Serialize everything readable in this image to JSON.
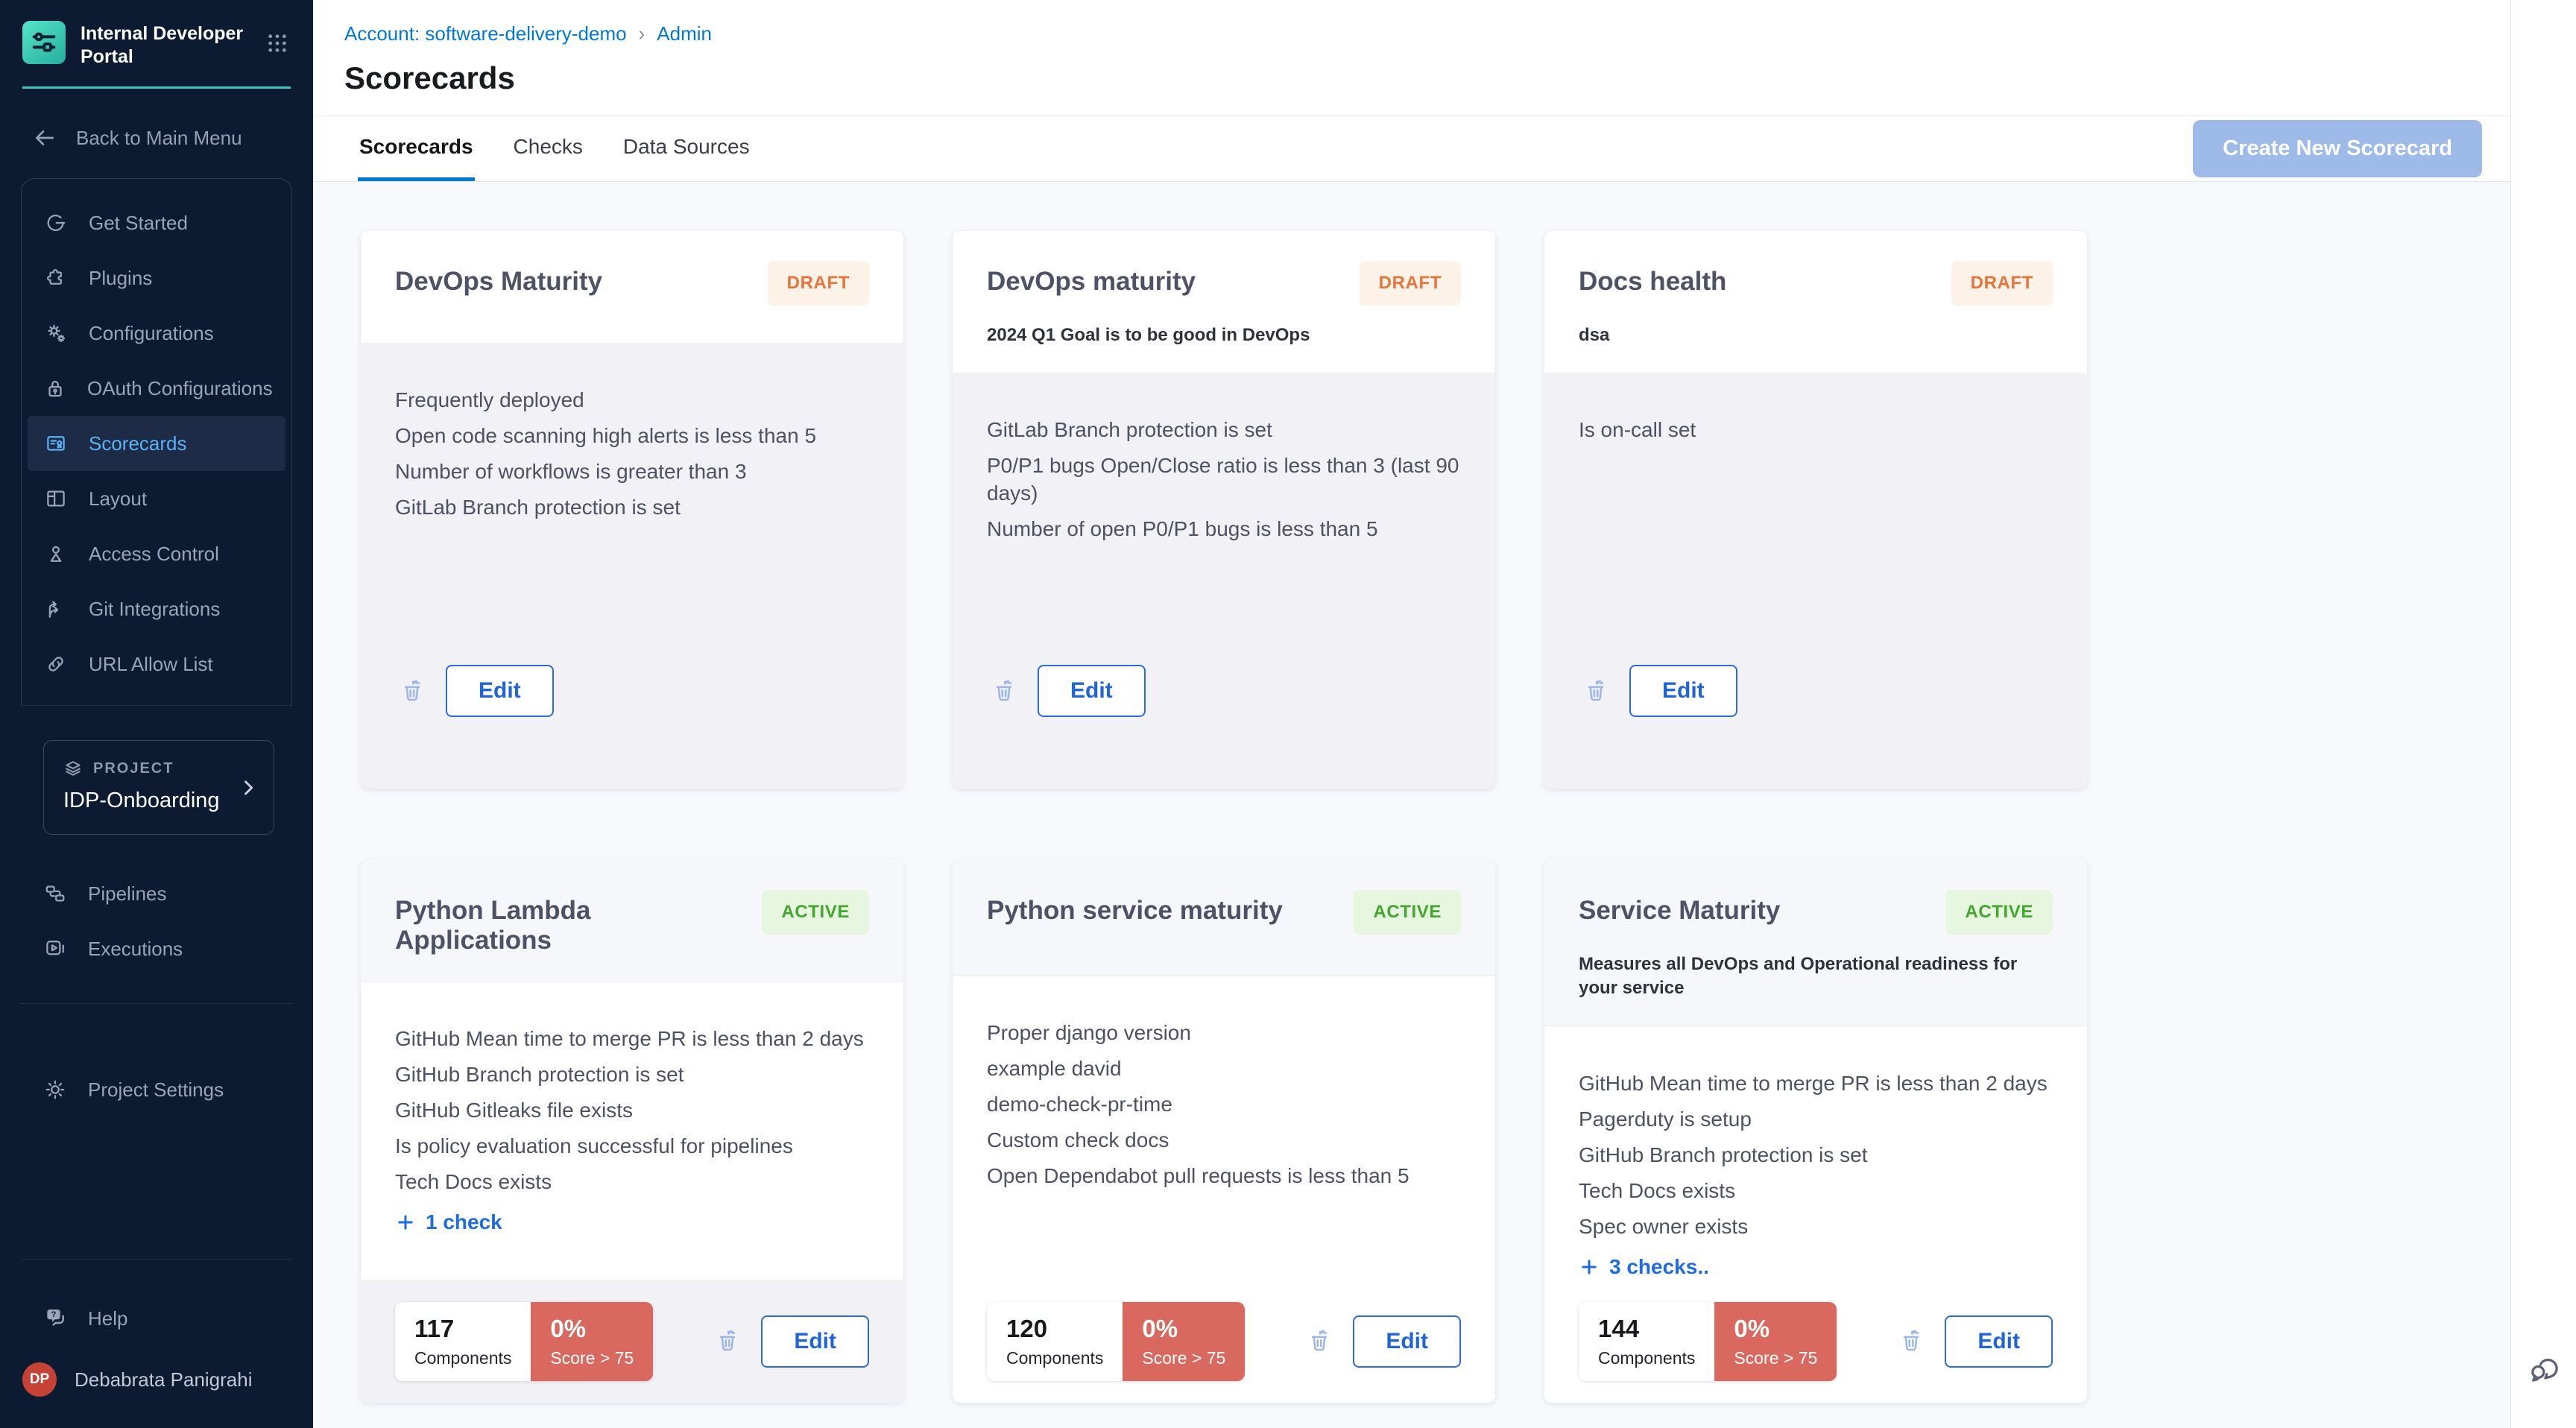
{
  "sidebar": {
    "brand": "Internal Developer Portal",
    "back_label": "Back to Main Menu",
    "nav_items": [
      {
        "label": "Get Started",
        "icon": "get-started"
      },
      {
        "label": "Plugins",
        "icon": "plugins"
      },
      {
        "label": "Configurations",
        "icon": "configurations"
      },
      {
        "label": "OAuth Configurations",
        "icon": "oauth"
      },
      {
        "label": "Scorecards",
        "icon": "scorecards",
        "active": true
      },
      {
        "label": "Layout",
        "icon": "layout"
      },
      {
        "label": "Access Control",
        "icon": "access-control"
      },
      {
        "label": "Git Integrations",
        "icon": "git-integrations"
      },
      {
        "label": "URL Allow List",
        "icon": "url-allow-list"
      }
    ],
    "project": {
      "eyebrow": "PROJECT",
      "name": "IDP-Onboarding"
    },
    "project_nav": [
      {
        "label": "Pipelines",
        "icon": "pipelines"
      },
      {
        "label": "Executions",
        "icon": "executions"
      }
    ],
    "settings_item": {
      "label": "Project Settings",
      "icon": "settings-gear"
    },
    "help_label": "Help",
    "user": {
      "initials": "DP",
      "name": "Debabrata Panigrahi"
    }
  },
  "header": {
    "breadcrumb": [
      {
        "label": "Account: software-delivery-demo"
      },
      {
        "label": "Admin"
      }
    ],
    "title": "Scorecards",
    "tabs": [
      {
        "label": "Scorecards",
        "active": true
      },
      {
        "label": "Checks",
        "active": false
      },
      {
        "label": "Data Sources",
        "active": false
      }
    ],
    "create_button": "Create New Scorecard"
  },
  "card_actions": {
    "edit_label": "Edit"
  },
  "cards": [
    {
      "title": "DevOps Maturity",
      "status": "DRAFT",
      "description": "",
      "checks": [
        "Frequently deployed",
        "Open code scanning high alerts is less than 5",
        "Number of workflows is greater than 3",
        "GitLab Branch protection is set"
      ],
      "more_checks": null,
      "stats": null,
      "footer_shaded": false
    },
    {
      "title": "DevOps maturity",
      "status": "DRAFT",
      "description": "2024 Q1 Goal is to be good in DevOps",
      "checks": [
        "GitLab Branch protection is set",
        "P0/P1 bugs Open/Close ratio is less than 3 (last 90 days)",
        "Number of open P0/P1 bugs is less than 5"
      ],
      "more_checks": null,
      "stats": null,
      "footer_shaded": false
    },
    {
      "title": "Docs health",
      "status": "DRAFT",
      "description": "dsa",
      "checks": [
        "Is on-call set"
      ],
      "more_checks": null,
      "stats": null,
      "footer_shaded": false
    },
    {
      "title": "Python Lambda Applications",
      "status": "ACTIVE",
      "description": "",
      "checks": [
        "GitHub Mean time to merge PR is less than 2 days",
        "GitHub Branch protection is set",
        "GitHub Gitleaks file exists",
        "Is policy evaluation successful for pipelines",
        "Tech Docs exists"
      ],
      "more_checks": "1 check",
      "stats": {
        "components": "117",
        "components_label": "Components",
        "score": "0%",
        "score_label": "Score > 75"
      },
      "footer_shaded": true
    },
    {
      "title": "Python service maturity",
      "status": "ACTIVE",
      "description": "",
      "checks": [
        "Proper django version",
        "example david",
        "demo-check-pr-time",
        "Custom check docs",
        "Open Dependabot pull requests is less than 5"
      ],
      "more_checks": null,
      "stats": {
        "components": "120",
        "components_label": "Components",
        "score": "0%",
        "score_label": "Score > 75"
      },
      "footer_shaded": false
    },
    {
      "title": "Service Maturity",
      "status": "ACTIVE",
      "description": "Measures all DevOps and Operational readiness for your service",
      "checks": [
        "GitHub Mean time to merge PR is less than 2 days",
        "Pagerduty is setup",
        "GitHub Branch protection is set",
        "Tech Docs exists",
        "Spec owner exists"
      ],
      "more_checks": "3 checks..",
      "stats": {
        "components": "144",
        "components_label": "Components",
        "score": "0%",
        "score_label": "Score > 75"
      },
      "footer_shaded": false
    }
  ],
  "colors": {
    "accent_blue": "#0278d5",
    "draft_orange": "#e8743c",
    "active_green": "#42a72f",
    "score_red": "#d9695f",
    "sidebar_teal": "#40c4b8",
    "avatar_red": "#c64236"
  }
}
